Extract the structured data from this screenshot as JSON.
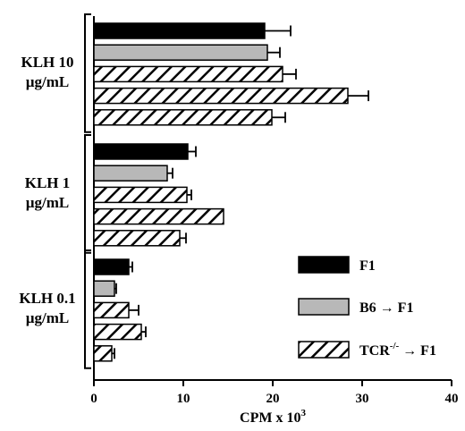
{
  "chart_data": {
    "type": "bar",
    "orientation": "horizontal",
    "xlabel": "CPM x 10",
    "xlabel_superscript": "3",
    "xlim": [
      0,
      40
    ],
    "xticks": [
      0,
      10,
      20,
      30,
      40
    ],
    "groups": [
      {
        "label_lines": [
          "KLH 10",
          "µg/mL"
        ],
        "bars": [
          {
            "series": 0,
            "value": 19.1,
            "error": 2.9
          },
          {
            "series": 1,
            "value": 19.4,
            "error": 1.4
          },
          {
            "series": 2,
            "value": 21.1,
            "error": 1.5
          },
          {
            "series": 2,
            "value": 28.4,
            "error": 2.3
          },
          {
            "series": 2,
            "value": 19.9,
            "error": 1.5
          }
        ]
      },
      {
        "label_lines": [
          "KLH 1",
          "µg/mL"
        ],
        "bars": [
          {
            "series": 0,
            "value": 10.5,
            "error": 0.9
          },
          {
            "series": 1,
            "value": 8.2,
            "error": 0.6
          },
          {
            "series": 2,
            "value": 10.4,
            "error": 0.5
          },
          {
            "series": 2,
            "value": 14.5,
            "error": 0.0
          },
          {
            "series": 2,
            "value": 9.6,
            "error": 0.7
          }
        ]
      },
      {
        "label_lines": [
          "KLH 0.1",
          "µg/mL"
        ],
        "bars": [
          {
            "series": 0,
            "value": 3.9,
            "error": 0.4
          },
          {
            "series": 1,
            "value": 2.3,
            "error": 0.2
          },
          {
            "series": 2,
            "value": 3.9,
            "error": 1.1
          },
          {
            "series": 2,
            "value": 5.3,
            "error": 0.5
          },
          {
            "series": 2,
            "value": 2.0,
            "error": 0.3
          }
        ]
      }
    ],
    "series": [
      {
        "legend_main": "F1",
        "legend_sup": "",
        "legend_tail": "",
        "fill": "#000000",
        "pattern": "solid"
      },
      {
        "legend_main": "B6 → F1",
        "legend_sup": "",
        "legend_tail": "",
        "fill": "#b8b8b8",
        "pattern": "solid"
      },
      {
        "legend_main": "TCR",
        "legend_sup": "-/-",
        "legend_tail": " → F1",
        "fill": "#ffffff",
        "pattern": "hatch"
      }
    ],
    "legend_placement": "bottom-right",
    "grid": false
  }
}
